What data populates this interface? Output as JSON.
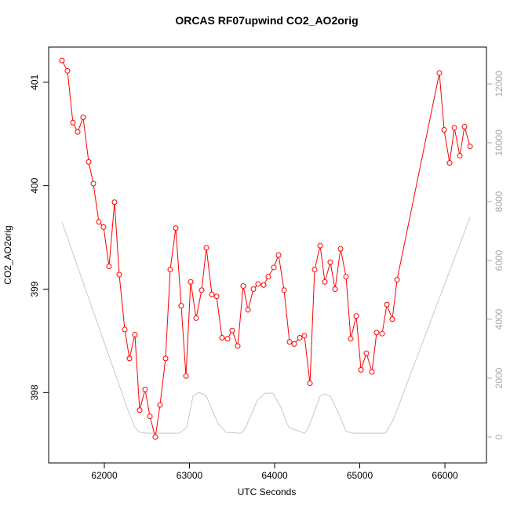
{
  "chart_data": {
    "type": "line",
    "title": "ORCAS RF07upwind CO2_AO2orig",
    "xlabel": "UTC Seconds",
    "ylabel": "CO2_AO2orig",
    "xlim": [
      61346,
      66488
    ],
    "ylim": [
      397.32,
      401.34
    ],
    "y2lim": [
      -880,
      13253
    ],
    "xticks": [
      62000,
      63000,
      64000,
      65000,
      66000
    ],
    "yticks": [
      398,
      399,
      400,
      401
    ],
    "y2ticks": [
      0,
      2000,
      4000,
      6000,
      8000,
      10000,
      12000
    ],
    "series": [
      {
        "color": "#ff0000",
        "markers": true,
        "x": [
          61502,
          61567,
          61631,
          61687,
          61751,
          61816,
          61871,
          61935,
          61991,
          62055,
          62120,
          62175,
          62240,
          62295,
          62359,
          62415,
          62479,
          62535,
          62599,
          62654,
          62719,
          62774,
          62839,
          62903,
          62959,
          63014,
          63078,
          63143,
          63198,
          63263,
          63318,
          63382,
          63447,
          63502,
          63567,
          63631,
          63687,
          63751,
          63806,
          63871,
          63926,
          63991,
          64046,
          64111,
          64175,
          64230,
          64295,
          64350,
          64415,
          64470,
          64535,
          64590,
          64654,
          64710,
          64774,
          64839,
          64894,
          64959,
          65014,
          65078,
          65143,
          65198,
          65263,
          65318,
          65382,
          65438,
          65935,
          65991,
          66055,
          66111,
          66175,
          66230,
          66295
        ],
        "values": [
          401.21,
          401.11,
          400.61,
          400.52,
          400.66,
          400.23,
          400.02,
          399.65,
          399.6,
          399.22,
          399.84,
          399.14,
          398.61,
          398.33,
          398.56,
          397.83,
          398.03,
          397.77,
          397.57,
          397.88,
          398.33,
          399.19,
          399.59,
          398.84,
          398.16,
          399.07,
          398.72,
          398.99,
          399.4,
          398.95,
          398.93,
          398.53,
          398.52,
          398.6,
          398.45,
          399.03,
          398.8,
          399.0,
          399.05,
          399.04,
          399.12,
          399.21,
          399.33,
          398.99,
          398.49,
          398.47,
          398.53,
          398.55,
          398.09,
          399.19,
          399.42,
          399.07,
          399.26,
          399.0,
          399.39,
          399.12,
          398.52,
          398.74,
          398.22,
          398.38,
          398.2,
          398.58,
          398.57,
          398.85,
          398.71,
          399.09,
          401.09,
          400.54,
          400.22,
          400.56,
          400.29,
          400.57,
          400.38
        ]
      },
      {
        "color": "#c8c8c8",
        "axis": "y2",
        "markers": false,
        "x": [
          61502,
          62267,
          62359,
          62414,
          62507,
          62876,
          62968,
          63041,
          63115,
          63198,
          63336,
          63429,
          63613,
          63659,
          63797,
          63889,
          63982,
          64075,
          64167,
          64351,
          64397,
          64535,
          64581,
          64655,
          64765,
          64839,
          64931,
          65302,
          65394,
          66295
        ],
        "values": [
          7307,
          1000,
          320,
          160,
          130,
          130,
          320,
          1390,
          1520,
          1390,
          450,
          160,
          130,
          320,
          1250,
          1490,
          1490,
          990,
          320,
          130,
          320,
          1390,
          1470,
          1390,
          720,
          190,
          130,
          130,
          590,
          7470
        ]
      }
    ]
  }
}
